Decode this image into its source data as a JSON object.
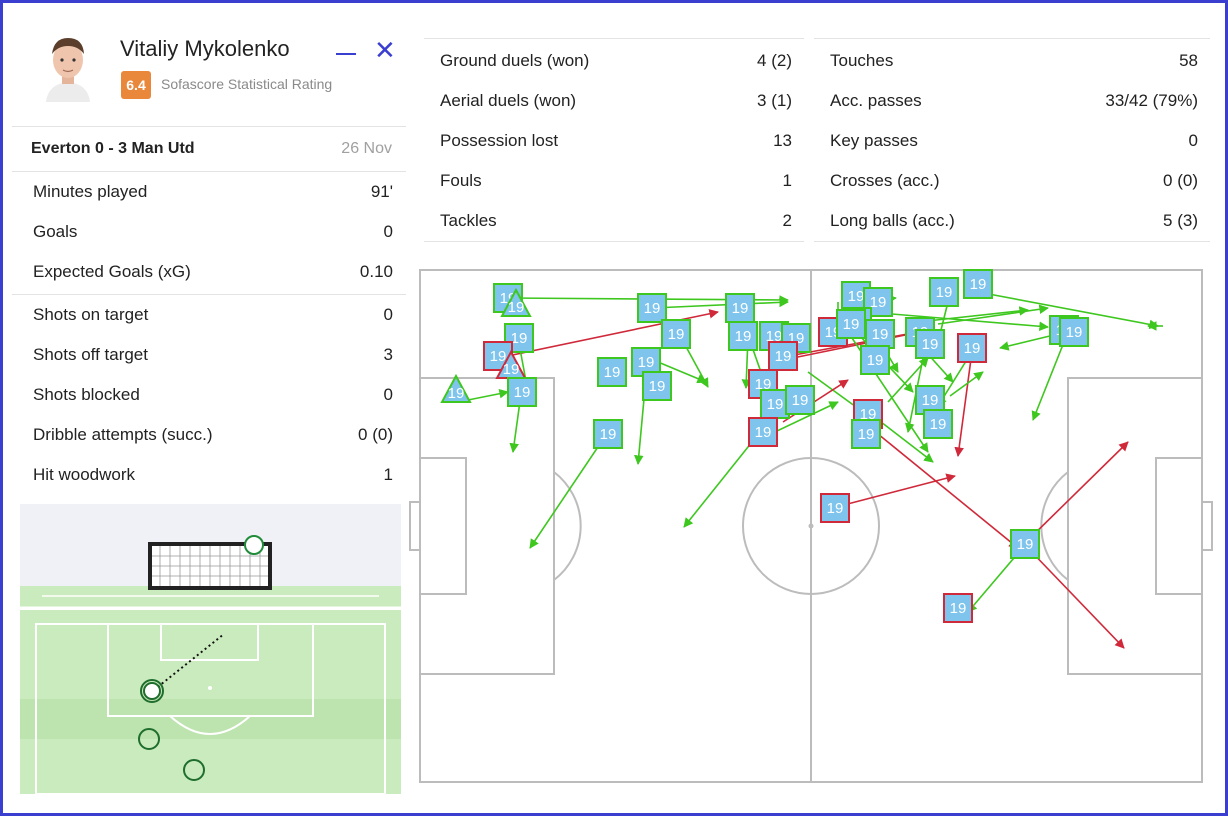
{
  "player": {
    "name": "Vitaliy Mykolenko",
    "rating": "6.4",
    "rating_label": "Sofascore Statistical Rating",
    "minimize_icon": "minimize-icon",
    "close_icon": "close-icon",
    "close_glyph": "✕"
  },
  "match": {
    "name": "Everton 0 - 3 Man Utd",
    "date": "26 Nov"
  },
  "left_stats": {
    "group1": [
      {
        "label": "Minutes played",
        "value": "91'"
      },
      {
        "label": "Goals",
        "value": "0"
      },
      {
        "label": "Expected Goals (xG)",
        "value": "0.10"
      }
    ],
    "group2": [
      {
        "label": "Shots on target",
        "value": "0"
      },
      {
        "label": "Shots off target",
        "value": "3"
      },
      {
        "label": "Shots blocked",
        "value": "0"
      },
      {
        "label": "Dribble attempts (succ.)",
        "value": "0 (0)"
      },
      {
        "label": "Hit woodwork",
        "value": "1"
      }
    ]
  },
  "middle_stats": [
    {
      "label": "Ground duels (won)",
      "value": "4 (2)"
    },
    {
      "label": "Aerial duels (won)",
      "value": "3 (1)"
    },
    {
      "label": "Possession lost",
      "value": "13"
    },
    {
      "label": "Fouls",
      "value": "1"
    },
    {
      "label": "Tackles",
      "value": "2"
    }
  ],
  "right_stats": [
    {
      "label": "Touches",
      "value": "58"
    },
    {
      "label": "Acc. passes",
      "value": "33/42 (79%)"
    },
    {
      "label": "Key passes",
      "value": "0"
    },
    {
      "label": "Crosses (acc.)",
      "value": "0 (0)"
    },
    {
      "label": "Long balls (acc.)",
      "value": "5 (3)"
    }
  ],
  "pitch_map": {
    "jersey_number": "19",
    "colors": {
      "success": "#3ec71f",
      "fail": "#d0293a",
      "marker_fill": "#7ec4ec",
      "line": "#bcbcbc"
    }
  }
}
